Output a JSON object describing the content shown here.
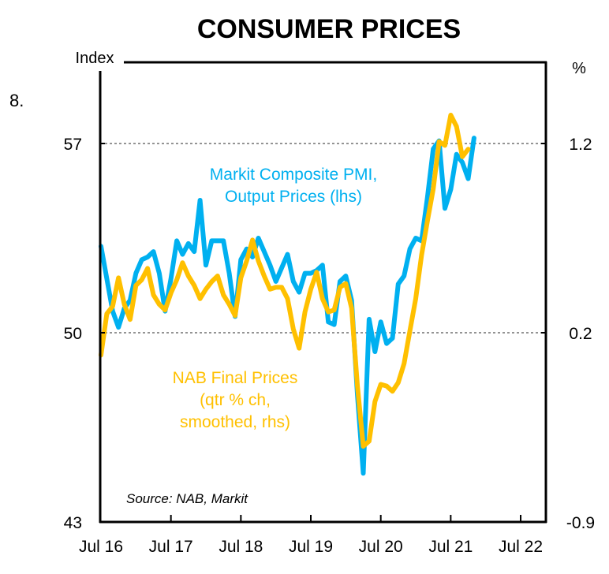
{
  "page_number": "8.",
  "chart_data": {
    "type": "line",
    "title": "CONSUMER PRICES",
    "left_axis": {
      "label": "Index",
      "ticks": [
        "57",
        "50",
        "43"
      ],
      "values": [
        57,
        50,
        43
      ],
      "ylim": [
        43,
        57
      ]
    },
    "right_axis": {
      "label": "%",
      "ticks": [
        "1.2",
        "0.2",
        "-0.9"
      ],
      "values": [
        1.2,
        0.2,
        -0.9
      ],
      "ylim": [
        -0.9,
        1.2
      ]
    },
    "x_axis": {
      "tick_labels": [
        "Jul 16",
        "Jul 17",
        "Jul 18",
        "Jul 19",
        "Jul 20",
        "Jul 21",
        "Jul 22"
      ],
      "start": "Jul 2016",
      "frequency": "monthly"
    },
    "gridlines": "dotted horizontal at 57/1.2 and 50/0.2",
    "source": "Source: NAB, Markit",
    "series": [
      {
        "name": "Markit Composite PMI, Output Prices (lhs)",
        "label_lines": [
          "Markit Composite PMI,",
          "Output Prices (lhs)"
        ],
        "axis": "left",
        "color": "#00B0F0",
        "values": [
          53.2,
          52.0,
          50.8,
          50.2,
          50.9,
          51.2,
          52.2,
          52.7,
          52.8,
          53.0,
          52.2,
          50.8,
          52.0,
          53.4,
          52.9,
          53.3,
          53.0,
          54.9,
          52.5,
          53.4,
          53.4,
          53.4,
          52.2,
          50.6,
          52.7,
          53.1,
          52.8,
          53.5,
          53.0,
          52.5,
          51.9,
          52.4,
          52.9,
          51.9,
          51.5,
          52.2,
          52.2,
          52.3,
          52.5,
          50.4,
          50.3,
          51.9,
          52.1,
          51.2,
          47.7,
          44.8,
          50.5,
          49.3,
          50.4,
          49.6,
          49.8,
          51.8,
          52.1,
          53.1,
          53.5,
          53.4,
          55.0,
          56.8,
          57.1,
          54.6,
          55.3,
          56.6,
          56.3,
          55.7,
          57.2
        ]
      },
      {
        "name": "NAB Final Prices (qtr % ch, smoothed, rhs)",
        "label_lines": [
          "NAB Final Prices",
          "(qtr % ch,",
          "smoothed, rhs)"
        ],
        "axis": "right",
        "color": "#FFC000",
        "values": [
          0.07,
          0.3,
          0.34,
          0.49,
          0.35,
          0.27,
          0.45,
          0.48,
          0.54,
          0.4,
          0.35,
          0.32,
          0.41,
          0.48,
          0.57,
          0.5,
          0.45,
          0.38,
          0.43,
          0.47,
          0.5,
          0.4,
          0.35,
          0.29,
          0.49,
          0.58,
          0.69,
          0.58,
          0.5,
          0.43,
          0.44,
          0.44,
          0.38,
          0.22,
          0.11,
          0.31,
          0.43,
          0.52,
          0.38,
          0.31,
          0.32,
          0.44,
          0.46,
          0.33,
          -0.11,
          -0.46,
          -0.43,
          -0.2,
          -0.1,
          -0.11,
          -0.14,
          -0.09,
          0.02,
          0.21,
          0.38,
          0.61,
          0.79,
          0.96,
          1.21,
          1.19,
          1.35,
          1.29,
          1.13,
          1.17
        ]
      }
    ]
  }
}
